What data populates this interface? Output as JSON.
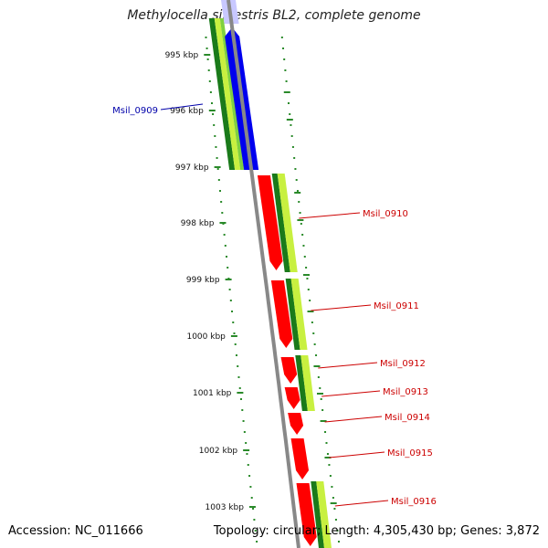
{
  "title": "Methylocella silvestris BL2, complete genome",
  "footer": {
    "accession": "Accession: NC_011666",
    "summary": "Topology: circular; Length: 4,305,430 bp; Genes: 3,872"
  },
  "colors": {
    "forward_gene": "#0000ee",
    "reverse_gene": "#ff0000",
    "gene_label_forward": "#0000aa",
    "gene_label_reverse": "#cc0000",
    "gc_dark": "#1a7a1a",
    "gc_light": "#c8f040",
    "backbone": "#888888",
    "dot_track": "#2a8a2a"
  },
  "ticks": [
    {
      "label": "995 kbp"
    },
    {
      "label": "996 kbp"
    },
    {
      "label": "997 kbp"
    },
    {
      "label": "998 kbp"
    },
    {
      "label": "999 kbp"
    },
    {
      "label": "1000 kbp"
    },
    {
      "label": "1001 kbp"
    },
    {
      "label": "1002 kbp"
    },
    {
      "label": "1003 kbp"
    }
  ],
  "genes": [
    {
      "name": "Msil_0909",
      "strand": "forward"
    },
    {
      "name": "Msil_0910",
      "strand": "reverse"
    },
    {
      "name": "Msil_0911",
      "strand": "reverse"
    },
    {
      "name": "Msil_0912",
      "strand": "reverse"
    },
    {
      "name": "Msil_0913",
      "strand": "reverse"
    },
    {
      "name": "Msil_0914",
      "strand": "reverse"
    },
    {
      "name": "Msil_0915",
      "strand": "reverse"
    },
    {
      "name": "Msil_0916",
      "strand": "reverse"
    }
  ]
}
